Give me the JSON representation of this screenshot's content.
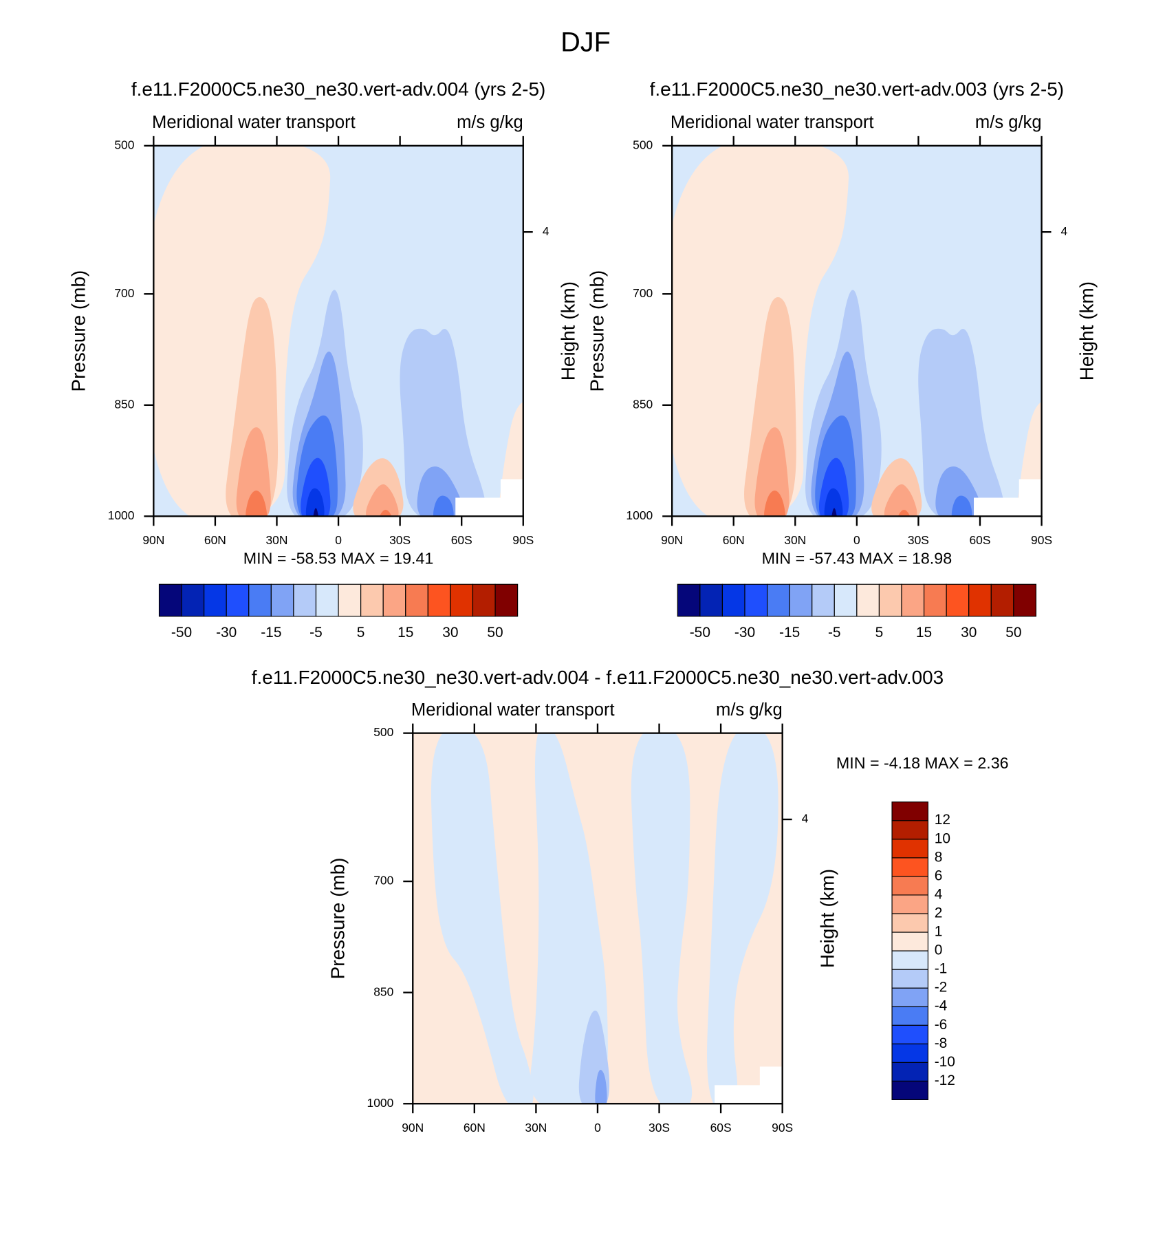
{
  "title": "DJF",
  "chart_data": [
    {
      "type": "contour",
      "title": "f.e11.F2000C5.ne30_ne30.vert-adv.004 (yrs 2-5)",
      "left_string": "Meridional water transport",
      "right_string": "m/s g/kg",
      "ylabel": "Pressure (mb)",
      "y2label": "Height (km)",
      "stats": "MIN = -58.53  MAX =  19.41",
      "xlim": [
        90,
        -90
      ],
      "xticks": [
        {
          "value": 90,
          "label": "90N"
        },
        {
          "value": 60,
          "label": "60N"
        },
        {
          "value": 30,
          "label": "30N"
        },
        0,
        {
          "value": -30,
          "label": "30S"
        },
        {
          "value": -60,
          "label": "60S"
        },
        {
          "value": -90,
          "label": "90S"
        }
      ],
      "ylim": [
        500,
        1000
      ],
      "yticks": [
        500,
        700,
        850,
        1000
      ],
      "y2ticks": [
        4
      ],
      "colorbar": {
        "orientation": "horizontal",
        "colors": [
          "#05067a",
          "#0323b4",
          "#0537e6",
          "#1f4ffd",
          "#4a7cf4",
          "#80a3f5",
          "#b4cbf8",
          "#d7e8fb",
          "#fde9dc",
          "#fcc9ae",
          "#fba585",
          "#f77b52",
          "#fd5420",
          "#e03200",
          "#b31e00",
          "#800000"
        ],
        "labels": [
          -50,
          -30,
          -15,
          -5,
          5,
          15,
          30,
          50
        ]
      }
    },
    {
      "type": "contour",
      "title": "f.e11.F2000C5.ne30_ne30.vert-adv.003 (yrs 2-5)",
      "left_string": "Meridional water transport",
      "right_string": "m/s g/kg",
      "ylabel": "Pressure (mb)",
      "y2label": "Height (km)",
      "stats": "MIN = -57.43  MAX =  18.98",
      "xlim": [
        90,
        -90
      ],
      "xticks": [
        {
          "value": 90,
          "label": "90N"
        },
        {
          "value": 60,
          "label": "60N"
        },
        {
          "value": 30,
          "label": "30N"
        },
        0,
        {
          "value": -30,
          "label": "30S"
        },
        {
          "value": -60,
          "label": "60S"
        },
        {
          "value": -90,
          "label": "90S"
        }
      ],
      "ylim": [
        500,
        1000
      ],
      "yticks": [
        500,
        700,
        850,
        1000
      ],
      "y2ticks": [
        4
      ],
      "colorbar": {
        "orientation": "horizontal",
        "colors": [
          "#05067a",
          "#0323b4",
          "#0537e6",
          "#1f4ffd",
          "#4a7cf4",
          "#80a3f5",
          "#b4cbf8",
          "#d7e8fb",
          "#fde9dc",
          "#fcc9ae",
          "#fba585",
          "#f77b52",
          "#fd5420",
          "#e03200",
          "#b31e00",
          "#800000"
        ],
        "labels": [
          -50,
          -30,
          -15,
          -5,
          5,
          15,
          30,
          50
        ]
      }
    },
    {
      "type": "contour",
      "title": "f.e11.F2000C5.ne30_ne30.vert-adv.004 - f.e11.F2000C5.ne30_ne30.vert-adv.003",
      "left_string": "Meridional water transport",
      "right_string": "m/s g/kg",
      "ylabel": "Pressure (mb)",
      "y2label": "Height (km)",
      "stats": "MIN =  -4.18  MAX =   2.36",
      "xlim": [
        90,
        -90
      ],
      "xticks": [
        {
          "value": 90,
          "label": "90N"
        },
        {
          "value": 60,
          "label": "60N"
        },
        {
          "value": 30,
          "label": "30N"
        },
        0,
        {
          "value": -30,
          "label": "30S"
        },
        {
          "value": -60,
          "label": "60S"
        },
        {
          "value": -90,
          "label": "90S"
        }
      ],
      "ylim": [
        500,
        1000
      ],
      "yticks": [
        500,
        700,
        850,
        1000
      ],
      "y2ticks": [
        4
      ],
      "colorbar": {
        "orientation": "vertical",
        "colors": [
          "#05067a",
          "#0323b4",
          "#0537e6",
          "#1f4ffd",
          "#4a7cf4",
          "#80a3f5",
          "#b4cbf8",
          "#d7e8fb",
          "#fde9dc",
          "#fcc9ae",
          "#fba585",
          "#f77b52",
          "#fd5420",
          "#e03200",
          "#b31e00",
          "#800000"
        ],
        "labels": [
          -12,
          -10,
          -8,
          -6,
          -4,
          -2,
          -1,
          0,
          1,
          2,
          4,
          6,
          8,
          10,
          12
        ]
      }
    }
  ]
}
